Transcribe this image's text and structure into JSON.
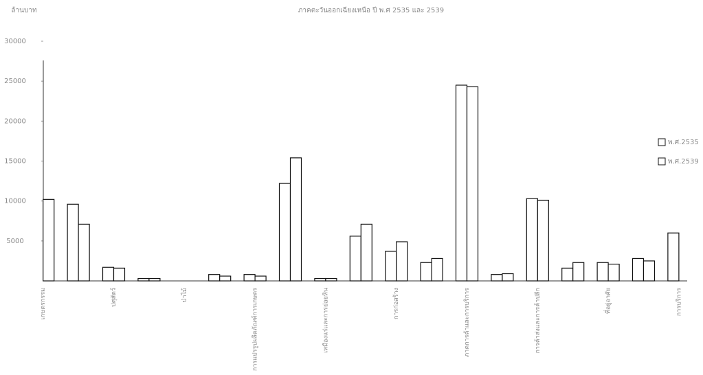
{
  "chart_data": {
    "type": "bar",
    "title": "ภาคตะวันออกเฉียงเหนือ ปี พ.ศ 2535 และ 2539",
    "y_label": "ล้านบาท",
    "categories": [
      "เกษตรกรรม",
      null,
      "ปศุสัตว์",
      null,
      "ป่าไม้",
      null,
      "การแปรรูปผลิตภัณฑ์การเกษตร",
      null,
      "เหมืองแร่และการย่อยหิน",
      null,
      "การก่อสร้าง",
      null,
      "ภาคการค้าและการบริการ",
      null,
      "การค้าส่งและการค้าปลีก",
      null,
      "ที่อยู่อาศัย",
      null,
      "การบริการ"
    ],
    "series": [
      {
        "name": "พ.ศ.2535",
        "color": "#ffffff",
        "values": [
          null,
          9600,
          1700,
          300,
          0,
          800,
          800,
          12200,
          300,
          5600,
          3700,
          2300,
          24500,
          800,
          10300,
          1600,
          2300,
          2800,
          6000
        ]
      },
      {
        "name": "พ.ศ.2539",
        "color": "#ffffff",
        "values": [
          10200,
          7100,
          1600,
          300,
          0,
          600,
          600,
          15400,
          300,
          7100,
          4900,
          2800,
          24300,
          900,
          10100,
          2300,
          2100,
          2500,
          null
        ]
      }
    ],
    "ylim": [
      0,
      30000
    ],
    "yticks": [
      5000,
      10000,
      15000,
      20000,
      25000,
      30000
    ],
    "legend": "right"
  }
}
